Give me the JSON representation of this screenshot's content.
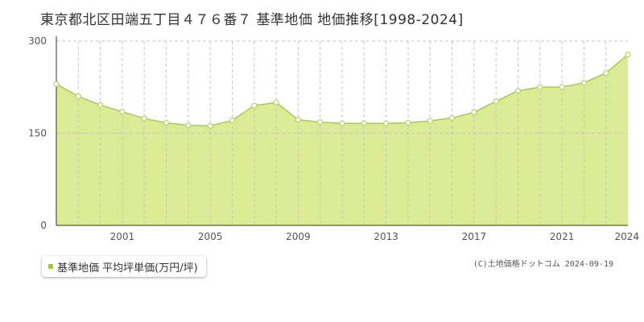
{
  "title": "東京都北区田端五丁目４７６番７ 基準地価 地価推移[1998-2024]",
  "legend": {
    "label": "基準地価 平均坪単価(万円/坪)"
  },
  "copyright": "(C)土地価格ドットコム 2024-09-19",
  "colors": {
    "area_fill": "#dbeb95",
    "line": "#a8cc44",
    "marker_stroke": "#b6d65c",
    "grid": "#c6c6c6"
  },
  "chart_data": {
    "type": "area",
    "x": [
      1998,
      1999,
      2000,
      2001,
      2002,
      2003,
      2004,
      2005,
      2006,
      2007,
      2008,
      2009,
      2010,
      2011,
      2012,
      2013,
      2014,
      2015,
      2016,
      2017,
      2018,
      2019,
      2020,
      2021,
      2022,
      2023,
      2024
    ],
    "series": [
      {
        "values": [
          230,
          210,
          196,
          185,
          174,
          167,
          163,
          162,
          171,
          195,
          200,
          172,
          168,
          166,
          166,
          166,
          167,
          170,
          175,
          184,
          202,
          219,
          225,
          225,
          232,
          248,
          278
        ]
      }
    ],
    "xlim": [
      1998,
      2024
    ],
    "ylim": [
      0,
      300
    ],
    "x_tick_labels": [
      "2001",
      "2005",
      "2009",
      "2013",
      "2017",
      "2021",
      "2024"
    ],
    "y_tick_labels": [
      "0",
      "150",
      "300"
    ],
    "grid": true
  }
}
